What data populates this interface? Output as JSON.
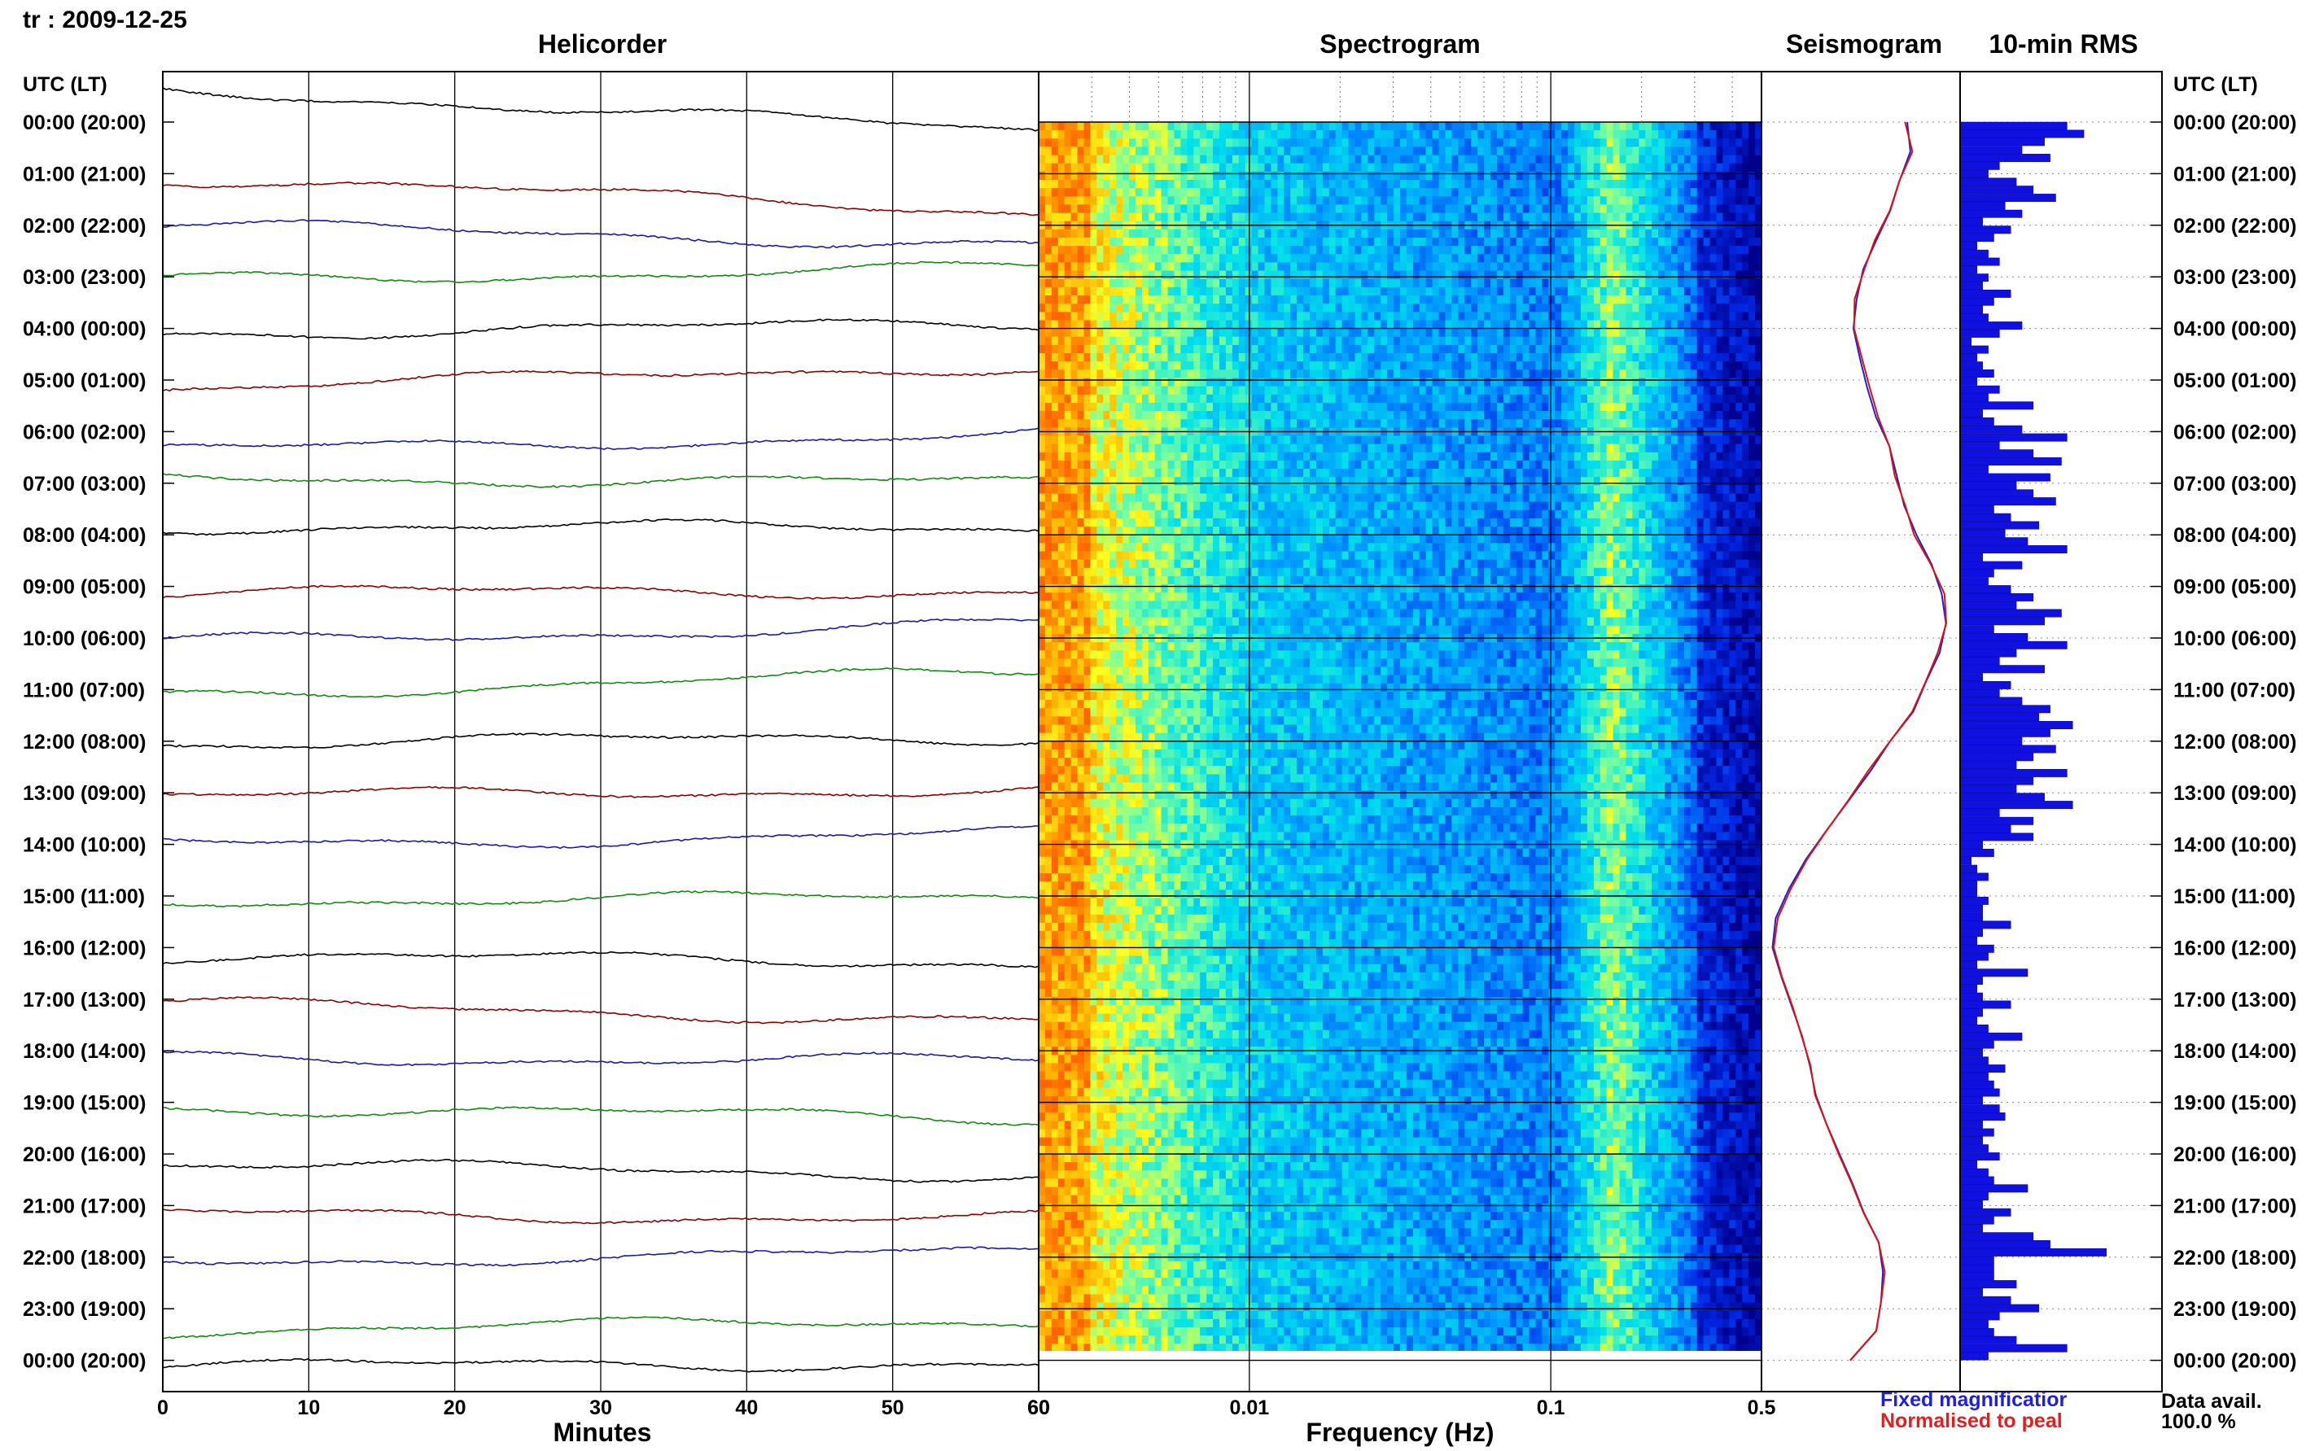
{
  "station_label": "tr : 2009-12-25",
  "panels": {
    "helicorder": "Helicorder",
    "spectrogram": "Spectrogram",
    "seismogram": "Seismogram",
    "rms": "10-min RMS"
  },
  "axis_titles": {
    "left_time": "UTC (LT)",
    "right_time": "UTC (LT)",
    "minutes": "Minutes",
    "frequency": "Frequency (Hz)"
  },
  "legend": {
    "fixed": "Fixed magnificatior",
    "normalised": "Normalised to peal"
  },
  "availability": {
    "label": "Data avail.",
    "value": "100.0 %"
  },
  "colors": {
    "trace_cycle": [
      "#000000",
      "#8b0000",
      "#1a1aa8",
      "#138a13"
    ],
    "rms_bar": "#1010e0",
    "seismogram_fixed": "#2020d0",
    "seismogram_normalised": "#e01010",
    "spectrogram_low": "#00008b",
    "spectrogram_high": "#ff6a00"
  },
  "chart_data": {
    "type": "heatmap",
    "time_labels": [
      "00:00 (20:00)",
      "01:00 (21:00)",
      "02:00 (22:00)",
      "03:00 (23:00)",
      "04:00 (00:00)",
      "05:00 (01:00)",
      "06:00 (02:00)",
      "07:00 (03:00)",
      "08:00 (04:00)",
      "09:00 (05:00)",
      "10:00 (06:00)",
      "11:00 (07:00)",
      "12:00 (08:00)",
      "13:00 (09:00)",
      "14:00 (10:00)",
      "15:00 (11:00)",
      "16:00 (12:00)",
      "17:00 (13:00)",
      "18:00 (14:00)",
      "19:00 (15:00)",
      "20:00 (16:00)",
      "21:00 (17:00)",
      "22:00 (18:00)",
      "23:00 (19:00)",
      "00:00 (20:00)"
    ],
    "minutes_ticks": [
      "0",
      "10",
      "20",
      "30",
      "40",
      "50",
      "60"
    ],
    "frequency_ticks": [
      "60",
      "0.01",
      "0.1",
      "0.5"
    ],
    "frequency_scale": "log",
    "helicorder": {
      "xlabel": "Minutes",
      "xlim": [
        0,
        60
      ],
      "traces_start_end": [
        [
          -1.6,
          0.5
        ],
        [
          0.2,
          1.8
        ],
        [
          0.0,
          0.9
        ],
        [
          0.1,
          -0.4
        ],
        [
          0.2,
          -0.2
        ],
        [
          0.4,
          -0.7
        ],
        [
          0.9,
          0.1
        ],
        [
          -0.3,
          0.0
        ],
        [
          -0.4,
          -0.3
        ],
        [
          0.3,
          0.2
        ],
        [
          0.2,
          -0.7
        ],
        [
          0.2,
          -0.8
        ],
        [
          0.1,
          -0.2
        ],
        [
          0.2,
          -0.2
        ],
        [
          0.0,
          -0.5
        ],
        [
          0.2,
          0.1
        ],
        [
          0.4,
          0.7
        ],
        [
          0.2,
          1.0
        ],
        [
          0.3,
          0.5
        ],
        [
          0.2,
          0.8
        ],
        [
          0.5,
          1.0
        ],
        [
          0.4,
          0.6
        ],
        [
          0.2,
          -0.2
        ],
        [
          1.0,
          0.6
        ],
        [
          0.3,
          0.1
        ]
      ]
    },
    "rms_10min": [
      1.9,
      2.2,
      1.5,
      1.1,
      1.6,
      0.7,
      0.5,
      1.0,
      1.3,
      1.7,
      0.8,
      1.1,
      0.4,
      0.9,
      0.6,
      0.3,
      0.5,
      0.7,
      0.3,
      0.5,
      0.4,
      0.9,
      0.6,
      0.4,
      0.5,
      1.1,
      0.7,
      0.2,
      0.5,
      0.3,
      0.4,
      0.6,
      0.3,
      0.7,
      0.5,
      1.3,
      0.4,
      0.6,
      1.1,
      1.9,
      0.7,
      1.3,
      1.8,
      0.5,
      1.6,
      1.0,
      1.3,
      1.7,
      0.6,
      0.9,
      1.4,
      0.8,
      1.2,
      1.9,
      0.4,
      1.1,
      0.6,
      0.5,
      0.9,
      1.3,
      1.0,
      1.8,
      1.5,
      0.6,
      1.2,
      1.9,
      1.0,
      0.7,
      1.5,
      0.4,
      0.9,
      0.7,
      1.1,
      1.6,
      1.4,
      2.0,
      1.6,
      1.1,
      1.7,
      1.3,
      1.0,
      1.9,
      1.3,
      1.0,
      1.5,
      2.0,
      0.7,
      1.3,
      0.9,
      1.3,
      0.4,
      0.6,
      0.2,
      0.3,
      0.5,
      0.3,
      0.3,
      0.5,
      0.4,
      0.4,
      0.9,
      0.4,
      0.3,
      0.6,
      0.5,
      0.3,
      1.2,
      0.4,
      0.3,
      0.4,
      0.9,
      0.4,
      0.3,
      0.5,
      1.1,
      0.6,
      0.4,
      0.5,
      0.8,
      0.5,
      0.6,
      0.7,
      0.4,
      0.7,
      0.8,
      0.4,
      0.6,
      0.4,
      0.5,
      0.7,
      0.3,
      0.5,
      0.6,
      1.2,
      0.5,
      0.4,
      0.9,
      0.6,
      0.4,
      1.3,
      1.6,
      2.6,
      0.6,
      0.6,
      0.6,
      1.0,
      0.4,
      0.9,
      1.4,
      0.7,
      0.5,
      0.6,
      1.0,
      1.9,
      0.5
    ],
    "seismogram_fixed": [
      0.75,
      0.78,
      0.72,
      0.66,
      0.58,
      0.52,
      0.47,
      0.46,
      0.5,
      0.54,
      0.59,
      0.66,
      0.69,
      0.74,
      0.8,
      0.88,
      0.95,
      0.97,
      0.93,
      0.85,
      0.78,
      0.66,
      0.55,
      0.43,
      0.31,
      0.2,
      0.11,
      0.04,
      0.02,
      0.07,
      0.12,
      0.18,
      0.22,
      0.25,
      0.31,
      0.38,
      0.45,
      0.52,
      0.59,
      0.63,
      0.62,
      0.58,
      0.45
    ]
  }
}
